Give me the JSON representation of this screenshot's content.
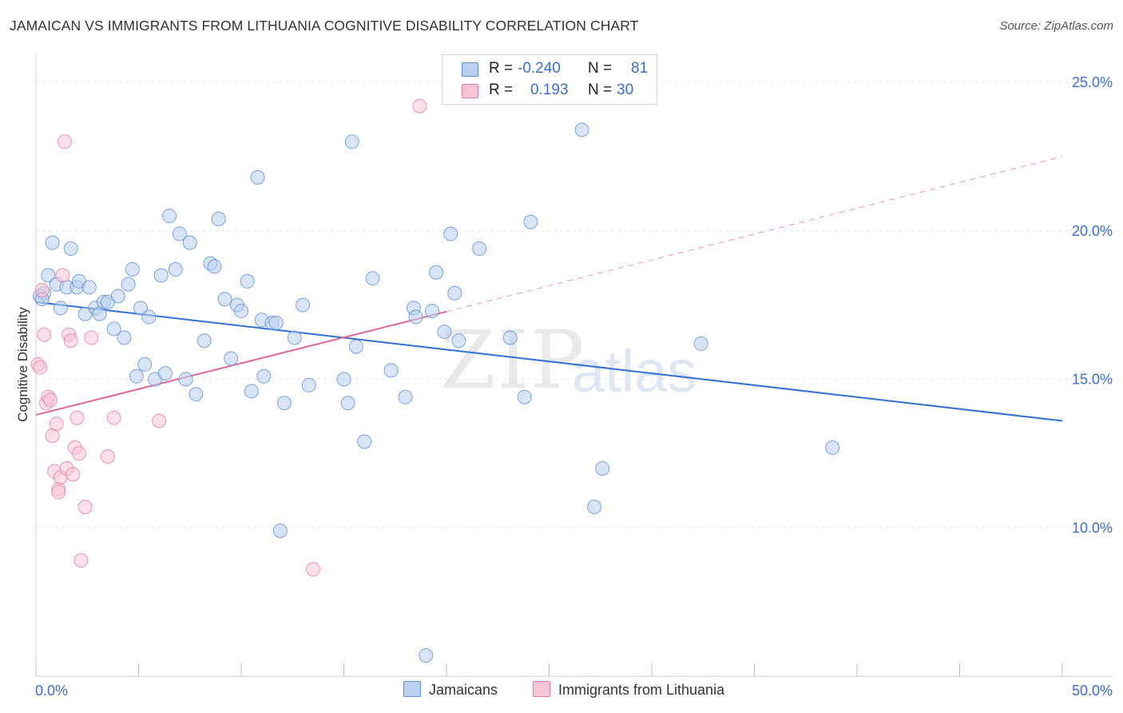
{
  "title": "JAMAICAN VS IMMIGRANTS FROM LITHUANIA COGNITIVE DISABILITY CORRELATION CHART",
  "source": "Source: ZipAtlas.com",
  "watermark": {
    "zip": "ZIP",
    "atlas": "atlas"
  },
  "legend": {
    "rows": [
      {
        "r_label": "R =",
        "r_value": "-0.240",
        "n_label": "N =",
        "n_value": "81"
      },
      {
        "r_label": "R =",
        "r_value": "0.193",
        "n_label": "N =",
        "n_value": "30"
      }
    ]
  },
  "bottom_legend": {
    "series1": "Jamaicans",
    "series2": "Immigrants from Lithuania"
  },
  "colors": {
    "blue_fill": "#b9d0f0",
    "blue_stroke": "#5b8fd6",
    "blue_line": "#2f6fd6",
    "pink_fill": "#f7c6d6",
    "pink_stroke": "#e47ca0",
    "pink_line": "#e0669a",
    "axis_text": "#3b6fd0",
    "grid": "#e6e6e6"
  },
  "chart_data": {
    "type": "scatter",
    "title": "JAMAICAN VS IMMIGRANTS FROM LITHUANIA COGNITIVE DISABILITY CORRELATION CHART",
    "xlabel": "",
    "ylabel": "Cognitive Disability",
    "xlim": [
      0,
      50
    ],
    "ylim": [
      5,
      25.7
    ],
    "x_tick_labels": [
      "0.0%",
      "50.0%"
    ],
    "y_ticks": [
      10,
      15,
      20,
      25
    ],
    "y_tick_labels": [
      "10.0%",
      "15.0%",
      "20.0%",
      "25.0%"
    ],
    "series": [
      {
        "name": "Jamaicans",
        "color": "blue",
        "trend": {
          "x": [
            0,
            50
          ],
          "y": [
            17.6,
            13.6
          ],
          "dashed_from": null
        },
        "points": [
          [
            0.2,
            17.8
          ],
          [
            0.4,
            17.9
          ],
          [
            0.6,
            18.5
          ],
          [
            0.8,
            19.6
          ],
          [
            1.0,
            18.2
          ],
          [
            1.2,
            17.4
          ],
          [
            1.5,
            18.1
          ],
          [
            1.7,
            19.4
          ],
          [
            2.0,
            18.1
          ],
          [
            2.1,
            18.3
          ],
          [
            2.4,
            17.2
          ],
          [
            2.6,
            18.1
          ],
          [
            2.9,
            17.4
          ],
          [
            3.1,
            17.2
          ],
          [
            3.3,
            17.6
          ],
          [
            3.5,
            17.6
          ],
          [
            3.8,
            16.7
          ],
          [
            4.0,
            17.8
          ],
          [
            4.3,
            16.4
          ],
          [
            4.5,
            18.2
          ],
          [
            4.7,
            18.7
          ],
          [
            4.9,
            15.1
          ],
          [
            5.1,
            17.4
          ],
          [
            5.3,
            15.5
          ],
          [
            5.5,
            17.1
          ],
          [
            5.8,
            15.0
          ],
          [
            6.1,
            18.5
          ],
          [
            6.3,
            15.2
          ],
          [
            6.5,
            20.5
          ],
          [
            6.8,
            18.7
          ],
          [
            7.0,
            19.9
          ],
          [
            7.3,
            15.0
          ],
          [
            7.5,
            19.6
          ],
          [
            7.8,
            14.5
          ],
          [
            8.2,
            16.3
          ],
          [
            8.5,
            18.9
          ],
          [
            8.7,
            18.8
          ],
          [
            8.9,
            20.4
          ],
          [
            9.2,
            17.7
          ],
          [
            9.5,
            15.7
          ],
          [
            9.8,
            17.5
          ],
          [
            10.0,
            17.3
          ],
          [
            10.3,
            18.3
          ],
          [
            10.5,
            14.6
          ],
          [
            10.8,
            21.8
          ],
          [
            11.0,
            17.0
          ],
          [
            11.1,
            15.1
          ],
          [
            11.5,
            16.9
          ],
          [
            11.7,
            16.9
          ],
          [
            11.9,
            9.9
          ],
          [
            12.1,
            14.2
          ],
          [
            12.6,
            16.4
          ],
          [
            13.0,
            17.5
          ],
          [
            13.3,
            14.8
          ],
          [
            15.0,
            15.0
          ],
          [
            15.2,
            14.2
          ],
          [
            15.4,
            23.0
          ],
          [
            15.6,
            16.1
          ],
          [
            16.0,
            12.9
          ],
          [
            16.4,
            18.4
          ],
          [
            17.3,
            15.3
          ],
          [
            18.0,
            14.4
          ],
          [
            18.4,
            17.4
          ],
          [
            18.5,
            17.1
          ],
          [
            19.0,
            5.7
          ],
          [
            19.3,
            17.3
          ],
          [
            19.5,
            18.6
          ],
          [
            19.9,
            16.6
          ],
          [
            20.2,
            19.9
          ],
          [
            20.4,
            17.9
          ],
          [
            20.6,
            16.3
          ],
          [
            21.6,
            19.4
          ],
          [
            23.1,
            16.4
          ],
          [
            23.8,
            14.4
          ],
          [
            24.1,
            20.3
          ],
          [
            26.6,
            23.4
          ],
          [
            27.2,
            10.7
          ],
          [
            27.6,
            12.0
          ],
          [
            32.4,
            16.2
          ],
          [
            38.8,
            12.7
          ],
          [
            0.3,
            17.7
          ]
        ]
      },
      {
        "name": "Immigrants from Lithuania",
        "color": "pink",
        "trend": {
          "x": [
            0,
            50
          ],
          "y": [
            13.8,
            22.5
          ],
          "dashed_from": 20.0
        },
        "points": [
          [
            0.1,
            15.5
          ],
          [
            0.2,
            15.4
          ],
          [
            0.3,
            18.0
          ],
          [
            0.4,
            16.5
          ],
          [
            0.5,
            14.2
          ],
          [
            0.6,
            14.4
          ],
          [
            0.7,
            14.3
          ],
          [
            0.8,
            13.1
          ],
          [
            0.9,
            11.9
          ],
          [
            1.0,
            13.5
          ],
          [
            1.1,
            11.3
          ],
          [
            1.2,
            11.7
          ],
          [
            1.3,
            18.5
          ],
          [
            1.4,
            23.0
          ],
          [
            1.5,
            12.0
          ],
          [
            1.6,
            16.5
          ],
          [
            1.7,
            16.3
          ],
          [
            1.8,
            11.8
          ],
          [
            1.9,
            12.7
          ],
          [
            2.0,
            13.7
          ],
          [
            2.1,
            12.5
          ],
          [
            2.2,
            8.9
          ],
          [
            2.4,
            10.7
          ],
          [
            2.7,
            16.4
          ],
          [
            3.5,
            12.4
          ],
          [
            3.8,
            13.7
          ],
          [
            6.0,
            13.6
          ],
          [
            13.5,
            8.6
          ],
          [
            18.7,
            24.2
          ],
          [
            1.1,
            11.2
          ]
        ]
      }
    ]
  }
}
